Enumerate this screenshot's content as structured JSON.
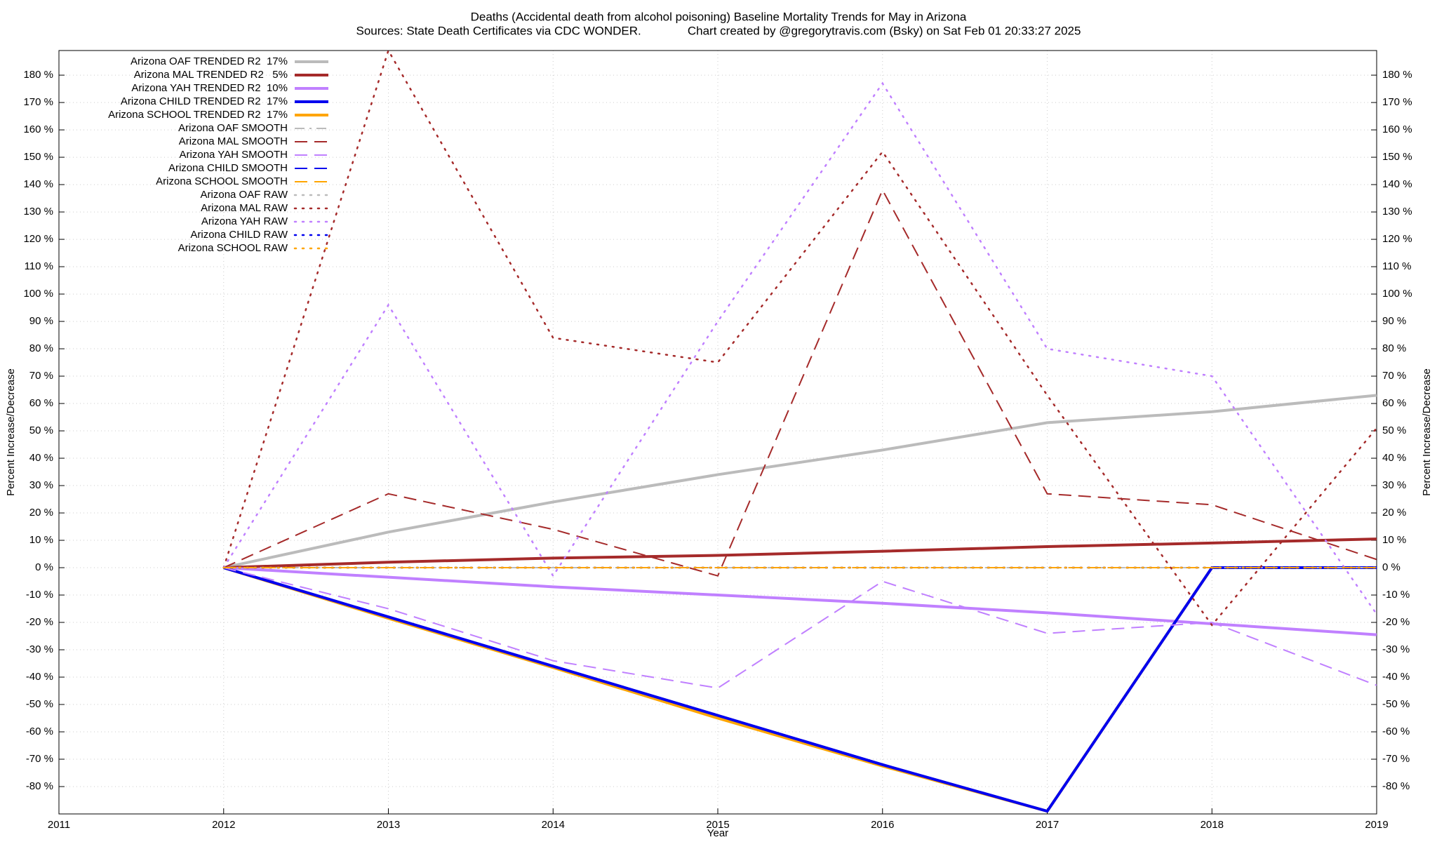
{
  "chart_data": {
    "type": "line",
    "title": "Deaths (Accidental death from alcohol poisoning)  Baseline Mortality Trends for May in Arizona",
    "subtitle": "Sources: State Death Certificates via CDC WONDER.              Chart created by @gregorytravis.com (Bsky) on Sat Feb 01 20:33:27 2025",
    "x_label": "Year",
    "y_label": "Percent Increase/Decrease",
    "y2_label": "Percent Increase/Decrease",
    "x": [
      2012,
      2013,
      2014,
      2015,
      2016,
      2017,
      2018,
      2019
    ],
    "xlim": [
      2011,
      2019
    ],
    "xticks": [
      2011,
      2012,
      2013,
      2014,
      2015,
      2016,
      2017,
      2018,
      2019
    ],
    "ylim": [
      -90,
      189
    ],
    "yticks": [
      {
        "value": -80,
        "label": "-80 %"
      },
      {
        "value": -70,
        "label": "-70 %"
      },
      {
        "value": -60,
        "label": "-60 %"
      },
      {
        "value": -50,
        "label": "-50 %"
      },
      {
        "value": -40,
        "label": "-40 %"
      },
      {
        "value": -30,
        "label": "-30 %"
      },
      {
        "value": -20,
        "label": "-20 %"
      },
      {
        "value": -10,
        "label": "-10 %"
      },
      {
        "value": 0,
        "label": "0 %"
      },
      {
        "value": 10,
        "label": "10 %"
      },
      {
        "value": 20,
        "label": "20 %"
      },
      {
        "value": 30,
        "label": "30 %"
      },
      {
        "value": 40,
        "label": "40 %"
      },
      {
        "value": 50,
        "label": "50 %"
      },
      {
        "value": 60,
        "label": "60 %"
      },
      {
        "value": 70,
        "label": "70 %"
      },
      {
        "value": 80,
        "label": "80 %"
      },
      {
        "value": 90,
        "label": "90 %"
      },
      {
        "value": 100,
        "label": "100 %"
      },
      {
        "value": 110,
        "label": "110 %"
      },
      {
        "value": 120,
        "label": "120 %"
      },
      {
        "value": 130,
        "label": "130 %"
      },
      {
        "value": 140,
        "label": "140 %"
      },
      {
        "value": 150,
        "label": "150 %"
      },
      {
        "value": 160,
        "label": "160 %"
      },
      {
        "value": 170,
        "label": "170 %"
      },
      {
        "value": 180,
        "label": "180 %"
      }
    ],
    "grid": true,
    "legend": "top-left",
    "series": [
      {
        "name": "Arizona OAF TRENDED R2  17%",
        "color": "#bbbbbb",
        "style": "solid",
        "width": 4,
        "values": [
          0,
          13,
          24,
          34,
          43,
          53,
          57,
          63
        ]
      },
      {
        "name": "Arizona MAL TRENDED R2   5%",
        "color": "#a52a2a",
        "style": "solid",
        "width": 4,
        "values": [
          0,
          2,
          3.5,
          4.5,
          6,
          7.7,
          9,
          10.5
        ]
      },
      {
        "name": "Arizona YAH TRENDED R2  10%",
        "color": "#c080ff",
        "style": "solid",
        "width": 4,
        "values": [
          0,
          -3.5,
          -7,
          -10,
          -13,
          -16.5,
          -20.5,
          -24.5
        ]
      },
      {
        "name": "Arizona CHILD TRENDED R2  17%",
        "color": "#0000ee",
        "style": "solid",
        "width": 4,
        "values": [
          0,
          -18,
          -36,
          -54,
          -72,
          -89,
          0,
          0
        ]
      },
      {
        "name": "Arizona SCHOOL TRENDED R2  17%",
        "color": "#ffa500",
        "style": "solid",
        "width": 4,
        "values": [
          0,
          -18.5,
          -36.5,
          -55,
          -72.5,
          -89,
          0,
          0
        ]
      },
      {
        "name": "Arizona OAF SMOOTH",
        "color": "#bbbbbb",
        "style": "dashdot",
        "width": 2,
        "values": [
          0,
          0,
          0,
          0,
          0,
          0,
          0,
          0
        ]
      },
      {
        "name": "Arizona MAL SMOOTH",
        "color": "#a52a2a",
        "style": "dashed",
        "width": 2,
        "values": [
          0,
          27,
          14,
          -3,
          138,
          27,
          23,
          3
        ]
      },
      {
        "name": "Arizona YAH SMOOTH",
        "color": "#c080ff",
        "style": "dashed",
        "width": 2,
        "values": [
          0,
          -15,
          -34,
          -44,
          -5,
          -24,
          -20,
          -43
        ]
      },
      {
        "name": "Arizona CHILD SMOOTH",
        "color": "#0000ee",
        "style": "dashed",
        "width": 2,
        "values": [
          0,
          0,
          0,
          0,
          0,
          0,
          0,
          0
        ]
      },
      {
        "name": "Arizona SCHOOL SMOOTH",
        "color": "#ffa500",
        "style": "dashed",
        "width": 2,
        "values": [
          0,
          0,
          0,
          0,
          0,
          0,
          0,
          0
        ]
      },
      {
        "name": "Arizona OAF RAW",
        "color": "#bbbbbb",
        "style": "dotted",
        "width": 2.5,
        "values": [
          0,
          0,
          0,
          0,
          0,
          0,
          0,
          0
        ]
      },
      {
        "name": "Arizona MAL RAW",
        "color": "#a52a2a",
        "style": "dotted",
        "width": 2.5,
        "values": [
          0,
          189,
          84,
          75,
          152,
          63,
          -21,
          51
        ]
      },
      {
        "name": "Arizona YAH RAW",
        "color": "#c080ff",
        "style": "dotted",
        "width": 2.5,
        "values": [
          0,
          96,
          -3,
          90,
          177,
          80,
          70,
          -17
        ]
      },
      {
        "name": "Arizona CHILD RAW",
        "color": "#0000ee",
        "style": "dotted",
        "width": 2.5,
        "values": [
          0,
          0,
          0,
          0,
          0,
          0,
          0,
          0
        ]
      },
      {
        "name": "Arizona SCHOOL RAW",
        "color": "#ffa500",
        "style": "dotted",
        "width": 2.5,
        "values": [
          0,
          0,
          0,
          0,
          0,
          0,
          0,
          0
        ]
      }
    ]
  }
}
